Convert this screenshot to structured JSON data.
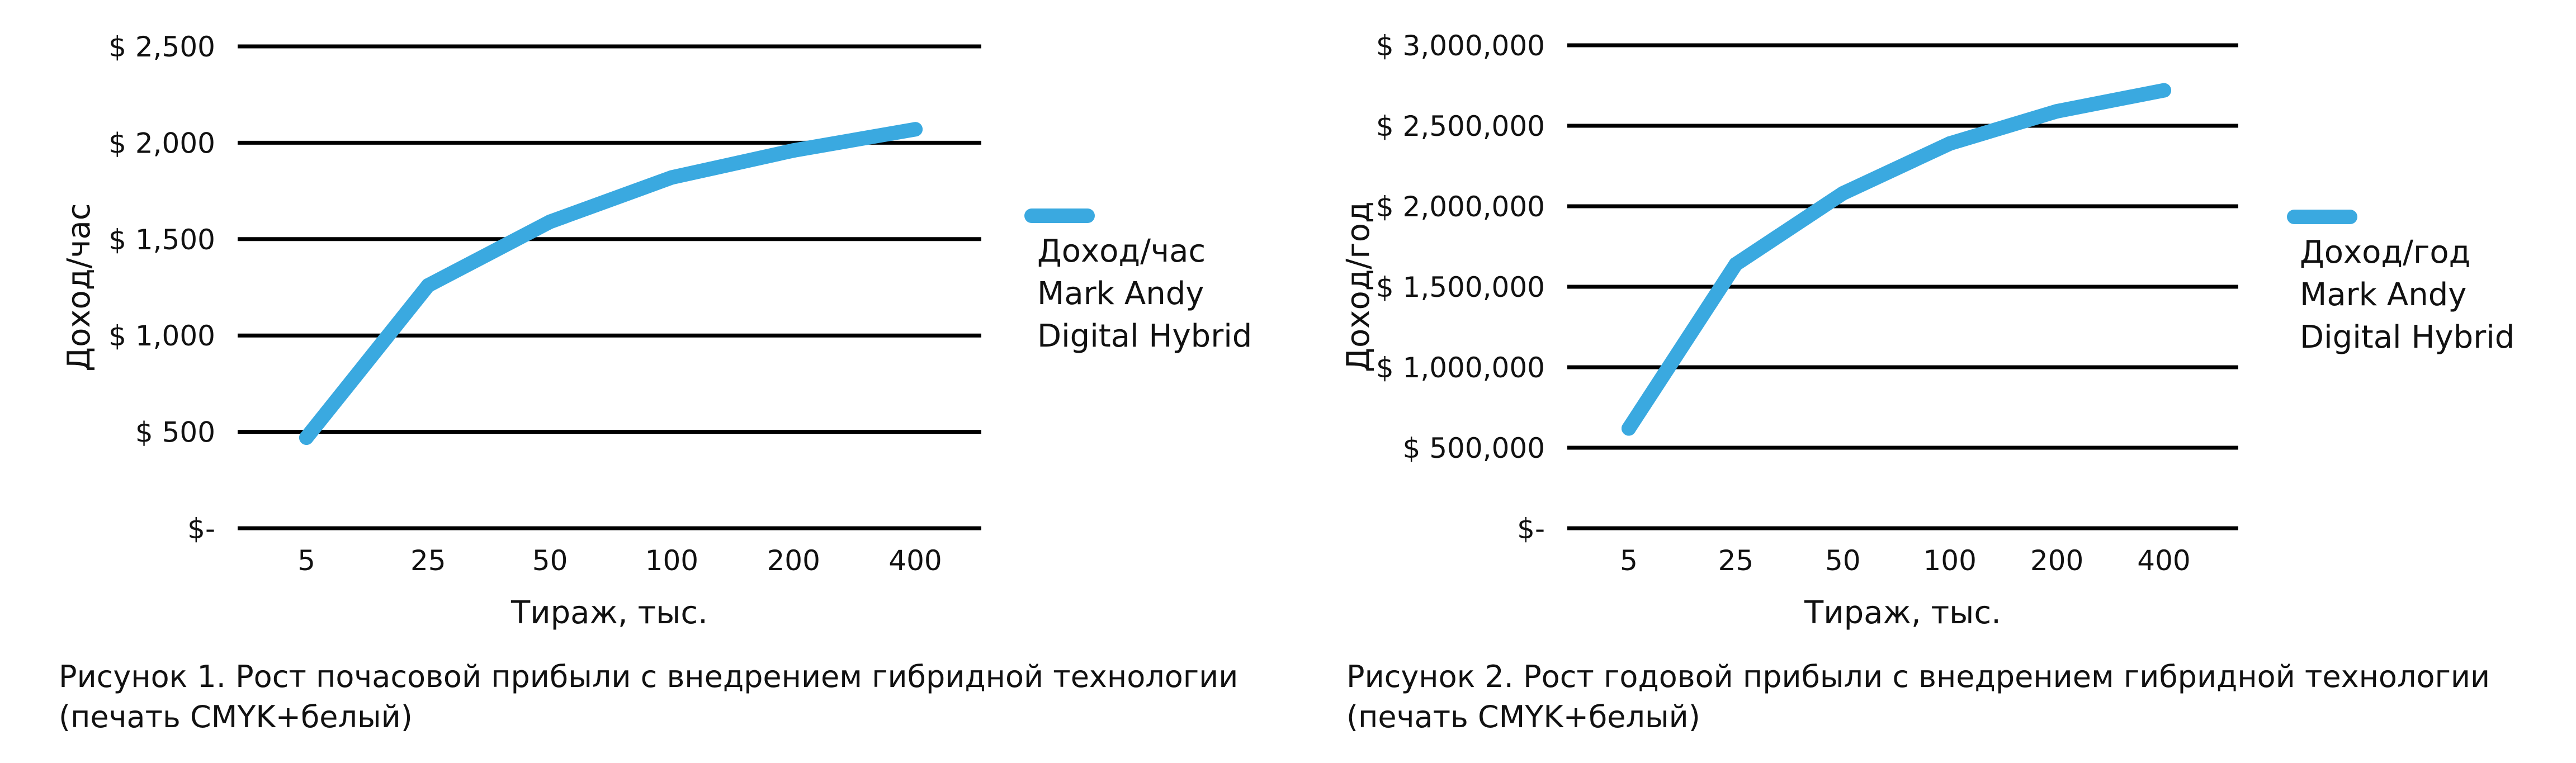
{
  "colors": {
    "series": "#3aa9e0",
    "grid": "#000000",
    "text": "#111111"
  },
  "chart_data": [
    {
      "type": "line",
      "x": [
        "5",
        "25",
        "50",
        "100",
        "200",
        "400"
      ],
      "xlabel": "Тираж, тыс.",
      "ylabel": "Доход/час",
      "ylim": [
        0,
        2500
      ],
      "yticks": [
        0,
        500,
        1000,
        1500,
        2000,
        2500
      ],
      "ytick_labels": [
        "$-",
        "$ 500",
        "$ 1,000",
        "$ 1,500",
        "$ 2,000",
        "$ 2,500"
      ],
      "grid": true,
      "legend_position": "right",
      "series": [
        {
          "name": [
            "Доход/час",
            "Mark Andy",
            "Digital Hybrid"
          ],
          "values": [
            470,
            1260,
            1590,
            1820,
            1960,
            2070
          ]
        }
      ],
      "caption": [
        "Рисунок 1. Рост почасовой прибыли с внедрением гибридной технологии",
        "(печать CMYK+белый)"
      ]
    },
    {
      "type": "line",
      "x": [
        "5",
        "25",
        "50",
        "100",
        "200",
        "400"
      ],
      "xlabel": "Тираж, тыс.",
      "ylabel": "Доход/год",
      "ylim": [
        0,
        3000000
      ],
      "yticks": [
        0,
        500000,
        1000000,
        1500000,
        2000000,
        2500000,
        3000000
      ],
      "ytick_labels": [
        "$-",
        "$ 500,000",
        "$ 1,000,000",
        "$ 1,500,000",
        "$ 2,000,000",
        "$ 2,500,000",
        "$ 3,000,000"
      ],
      "grid": true,
      "legend_position": "right",
      "series": [
        {
          "name": [
            "Доход/год",
            "Mark Andy",
            "Digital Hybrid"
          ],
          "values": [
            620000,
            1640000,
            2080000,
            2390000,
            2590000,
            2720000
          ]
        }
      ],
      "caption": [
        "Рисунок 2. Рост годовой прибыли с внедрением гибридной технологии",
        "(печать CMYK+белый)"
      ]
    }
  ]
}
